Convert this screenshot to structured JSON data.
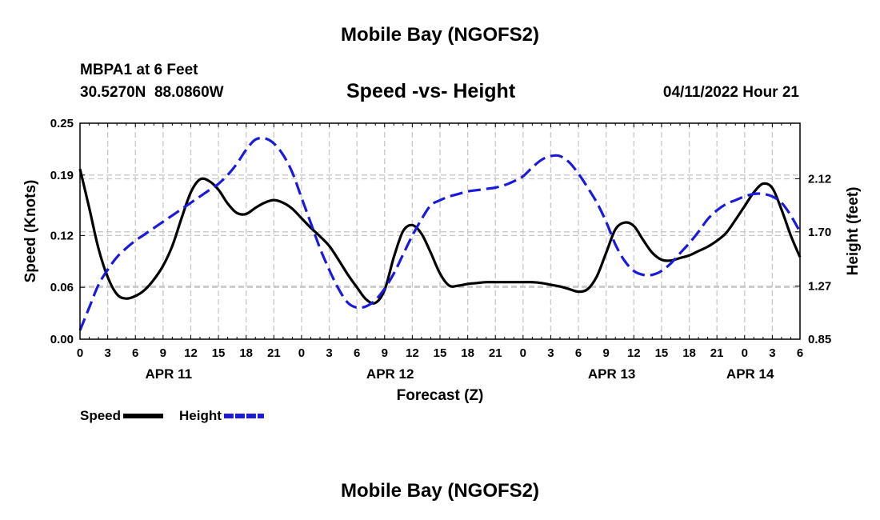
{
  "page": {
    "title_top": "Mobile Bay (NGOFS2)",
    "title_bottom": "Mobile Bay (NGOFS2)",
    "station": "MBPA1 at 6 Feet",
    "coords": "30.5270N  88.0860W",
    "datetime": "04/11/2022 Hour 21"
  },
  "colors": {
    "speed": "#000000",
    "height": "#1a1adc",
    "grid": "#c8c8c8"
  },
  "chart_data": {
    "type": "line",
    "title": "Speed -vs- Height",
    "xlabel": "Forecast (Z)",
    "ylabel": "Speed (Knots)",
    "y2label": "Height (feet)",
    "xlim": [
      0,
      78
    ],
    "ylim": [
      0,
      0.25
    ],
    "y2lim": [
      0.85,
      2.56
    ],
    "x_ticks": [
      0,
      3,
      6,
      9,
      12,
      15,
      18,
      21,
      24,
      27,
      30,
      33,
      36,
      39,
      42,
      45,
      48,
      51,
      54,
      57,
      60,
      63,
      66,
      69,
      72,
      75,
      78
    ],
    "x_tick_labels": [
      "0",
      "3",
      "6",
      "9",
      "12",
      "15",
      "18",
      "21",
      "0",
      "3",
      "6",
      "9",
      "12",
      "15",
      "18",
      "21",
      "0",
      "3",
      "6",
      "9",
      "12",
      "15",
      "18",
      "21",
      "0",
      "3",
      "6"
    ],
    "date_labels": [
      {
        "x": 9.6,
        "label": "APR 11"
      },
      {
        "x": 33.6,
        "label": "APR 12"
      },
      {
        "x": 57.6,
        "label": "APR 13"
      },
      {
        "x": 72.6,
        "label": "APR 14"
      }
    ],
    "y_ticks": [
      0.0,
      0.06,
      0.12,
      0.19,
      0.25
    ],
    "y_tick_labels": [
      "0.00",
      "0.06",
      "0.12",
      "0.19",
      "0.25"
    ],
    "y2_ticks": [
      0.85,
      1.27,
      1.7,
      2.12
    ],
    "y2_tick_labels": [
      "0.85",
      "1.27",
      "1.70",
      "2.12"
    ],
    "legend": [
      {
        "label": "Speed",
        "series": "speed"
      },
      {
        "label": "Height",
        "series": "height"
      }
    ],
    "series": [
      {
        "name": "Speed",
        "key": "speed",
        "axis": "left",
        "style": "solid",
        "x": [
          0,
          1,
          2,
          3,
          4,
          5,
          6,
          7,
          8,
          9,
          10,
          11,
          12,
          13,
          14,
          15,
          16,
          17,
          18,
          19,
          20,
          21,
          22,
          23,
          24,
          25,
          26,
          27,
          28,
          29,
          30,
          31,
          32,
          33,
          34,
          35,
          36,
          37,
          38,
          39,
          40,
          41,
          42,
          43,
          44,
          45,
          46,
          47,
          48,
          49,
          50,
          51,
          52,
          53,
          54,
          55,
          56,
          57,
          58,
          59,
          60,
          61,
          62,
          63,
          64,
          65,
          66,
          67,
          68,
          69,
          70,
          71,
          72,
          73,
          74,
          75,
          76,
          77,
          78
        ],
        "values": [
          0.197,
          0.152,
          0.105,
          0.072,
          0.052,
          0.047,
          0.05,
          0.057,
          0.069,
          0.085,
          0.108,
          0.14,
          0.17,
          0.185,
          0.183,
          0.173,
          0.157,
          0.146,
          0.145,
          0.152,
          0.158,
          0.161,
          0.158,
          0.151,
          0.14,
          0.129,
          0.119,
          0.108,
          0.092,
          0.075,
          0.06,
          0.046,
          0.042,
          0.057,
          0.095,
          0.125,
          0.132,
          0.122,
          0.1,
          0.076,
          0.062,
          0.062,
          0.064,
          0.065,
          0.066,
          0.066,
          0.066,
          0.066,
          0.066,
          0.066,
          0.065,
          0.063,
          0.061,
          0.058,
          0.055,
          0.058,
          0.073,
          0.1,
          0.127,
          0.135,
          0.131,
          0.115,
          0.1,
          0.092,
          0.091,
          0.094,
          0.097,
          0.102,
          0.107,
          0.114,
          0.123,
          0.138,
          0.154,
          0.17,
          0.18,
          0.175,
          0.15,
          0.12,
          0.095
        ]
      },
      {
        "name": "Height",
        "key": "height",
        "axis": "right",
        "style": "dashed",
        "x": [
          0,
          1,
          2,
          3,
          4,
          5,
          6,
          7,
          8,
          9,
          10,
          11,
          12,
          13,
          14,
          15,
          16,
          17,
          18,
          19,
          20,
          21,
          22,
          23,
          24,
          25,
          26,
          27,
          28,
          29,
          30,
          31,
          32,
          33,
          34,
          35,
          36,
          37,
          38,
          39,
          40,
          41,
          42,
          43,
          44,
          45,
          46,
          47,
          48,
          49,
          50,
          51,
          52,
          53,
          54,
          55,
          56,
          57,
          58,
          59,
          60,
          61,
          62,
          63,
          64,
          65,
          66,
          67,
          68,
          69,
          70,
          71,
          72,
          73,
          74,
          75,
          76,
          77,
          78
        ],
        "values": [
          0.92,
          1.1,
          1.28,
          1.4,
          1.5,
          1.57,
          1.63,
          1.68,
          1.73,
          1.78,
          1.83,
          1.88,
          1.93,
          1.98,
          2.03,
          2.08,
          2.15,
          2.24,
          2.35,
          2.43,
          2.44,
          2.4,
          2.31,
          2.17,
          1.97,
          1.77,
          1.57,
          1.4,
          1.25,
          1.14,
          1.1,
          1.11,
          1.16,
          1.25,
          1.37,
          1.52,
          1.67,
          1.8,
          1.91,
          1.95,
          1.98,
          2.0,
          2.02,
          2.03,
          2.04,
          2.05,
          2.07,
          2.1,
          2.14,
          2.21,
          2.27,
          2.3,
          2.3,
          2.25,
          2.16,
          2.05,
          1.93,
          1.78,
          1.6,
          1.47,
          1.39,
          1.36,
          1.36,
          1.39,
          1.45,
          1.53,
          1.61,
          1.7,
          1.8,
          1.87,
          1.92,
          1.95,
          1.98,
          2.0,
          2.0,
          1.98,
          1.93,
          1.83,
          1.7
        ]
      }
    ]
  }
}
